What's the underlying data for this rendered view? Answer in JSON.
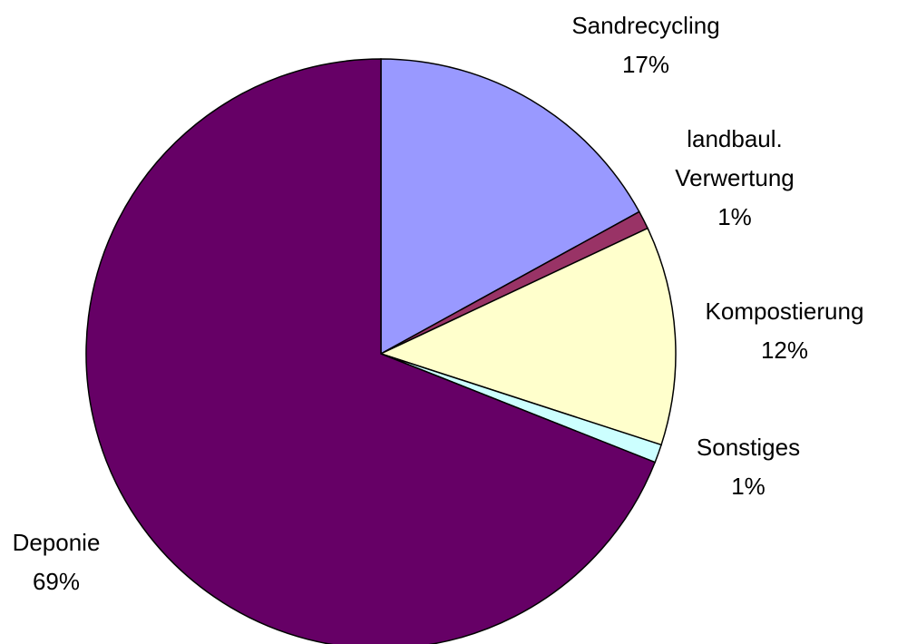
{
  "chart_data": {
    "type": "pie",
    "categories": [
      "Sandrecycling",
      "landbaul.\nVerwertung",
      "Kompostierung",
      "Sonstiges",
      "Deponie"
    ],
    "values": [
      17,
      1,
      12,
      1,
      69
    ],
    "value_labels": [
      "17%",
      "1%",
      "12%",
      "1%",
      "69%"
    ],
    "colors": [
      "#9999ff",
      "#993366",
      "#ffffcc",
      "#ccffff",
      "#660066"
    ]
  }
}
